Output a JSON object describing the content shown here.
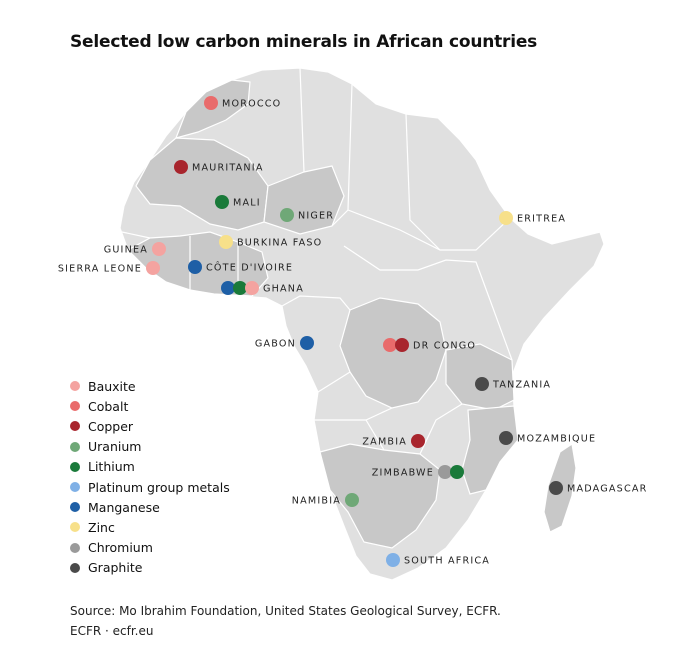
{
  "title": "Selected low carbon minerals in African countries",
  "minerals": {
    "bauxite": {
      "name": "Bauxite",
      "color": "#f4a3a0"
    },
    "cobalt": {
      "name": "Cobalt",
      "color": "#e96b6b"
    },
    "copper": {
      "name": "Copper",
      "color": "#a8252d"
    },
    "uranium": {
      "name": "Uranium",
      "color": "#6fa877"
    },
    "lithium": {
      "name": "Lithium",
      "color": "#1a7a3a"
    },
    "pgm": {
      "name": "Platinum group metals",
      "color": "#7fb0e6"
    },
    "manganese": {
      "name": "Manganese",
      "color": "#1e5fa6"
    },
    "zinc": {
      "name": "Zinc",
      "color": "#f7e08a"
    },
    "chromium": {
      "name": "Chromium",
      "color": "#9a9a9a"
    },
    "graphite": {
      "name": "Graphite",
      "color": "#4a4a4a"
    }
  },
  "legend_order": [
    "bauxite",
    "cobalt",
    "copper",
    "uranium",
    "lithium",
    "pgm",
    "manganese",
    "zinc",
    "chromium",
    "graphite"
  ],
  "countries": [
    {
      "label": "MOROCCO",
      "minerals": [
        "cobalt"
      ]
    },
    {
      "label": "MAURITANIA",
      "minerals": [
        "copper"
      ]
    },
    {
      "label": "MALI",
      "minerals": [
        "lithium"
      ]
    },
    {
      "label": "NIGER",
      "minerals": [
        "uranium"
      ]
    },
    {
      "label": "ERITREA",
      "minerals": [
        "zinc"
      ]
    },
    {
      "label": "BURKINA FASO",
      "minerals": [
        "zinc"
      ]
    },
    {
      "label": "GUINEA",
      "minerals": [
        "bauxite"
      ]
    },
    {
      "label": "SIERRA LEONE",
      "minerals": [
        "bauxite"
      ]
    },
    {
      "label": "CÔTE D'IVOIRE",
      "minerals": [
        "manganese"
      ]
    },
    {
      "label": "GHANA",
      "minerals": [
        "manganese",
        "lithium",
        "bauxite"
      ]
    },
    {
      "label": "GABON",
      "minerals": [
        "manganese"
      ]
    },
    {
      "label": "DR CONGO",
      "minerals": [
        "cobalt",
        "copper"
      ]
    },
    {
      "label": "TANZANIA",
      "minerals": [
        "graphite"
      ]
    },
    {
      "label": "ZAMBIA",
      "minerals": [
        "copper"
      ]
    },
    {
      "label": "MOZAMBIQUE",
      "minerals": [
        "graphite"
      ]
    },
    {
      "label": "ZIMBABWE",
      "minerals": [
        "chromium",
        "lithium"
      ]
    },
    {
      "label": "MADAGASCAR",
      "minerals": [
        "graphite"
      ]
    },
    {
      "label": "NAMIBIA",
      "minerals": [
        "uranium"
      ]
    },
    {
      "label": "SOUTH AFRICA",
      "minerals": [
        "pgm"
      ]
    }
  ],
  "colors": {
    "land": "#e0e0e0",
    "land_dark": "#c8c8c8",
    "border": "#ffffff"
  },
  "source_line": "Source: Mo Ibrahim Foundation, United States Geological Survey, ECFR.",
  "credit_line": "ECFR · ecfr.eu"
}
